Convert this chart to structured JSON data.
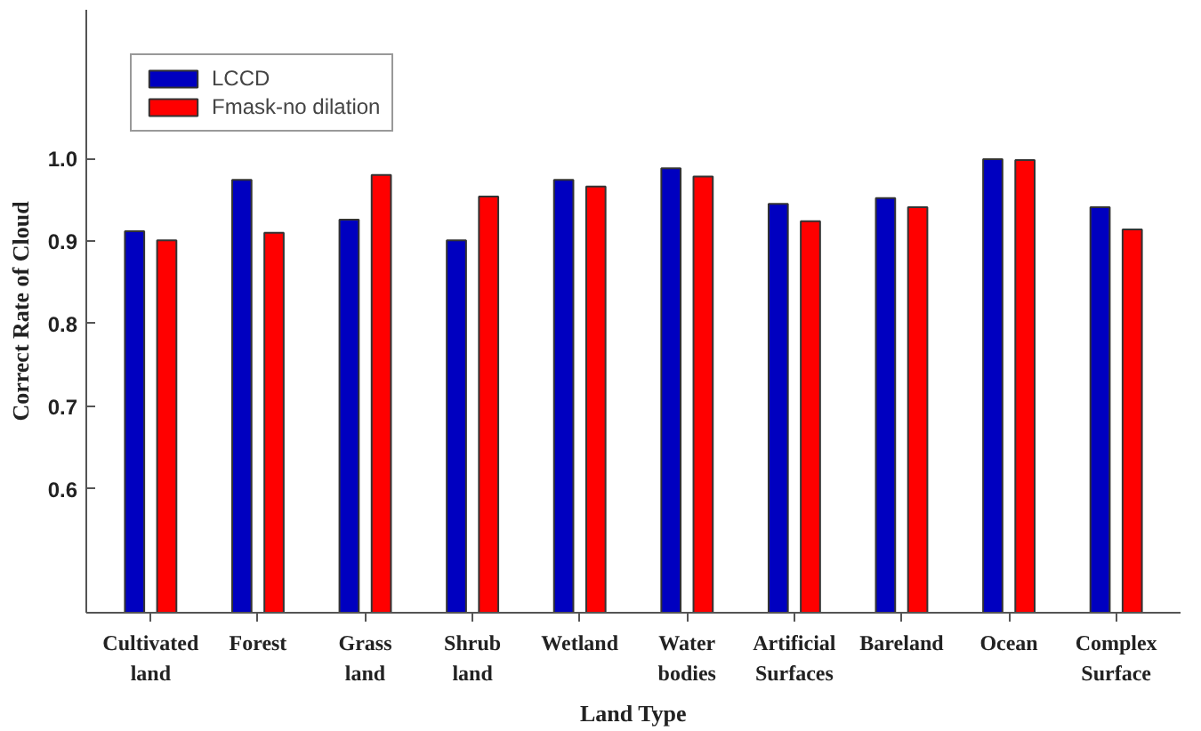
{
  "chart_data": {
    "type": "bar",
    "xlabel": "Land Type",
    "ylabel": "Correct Rate of Cloud",
    "categories": [
      "Cultivated land",
      "Forest",
      "Grass land",
      "Shrub land",
      "Wetland",
      "Water bodies",
      "Artificial Surfaces",
      "Bareland",
      "Ocean",
      "Complex Surface"
    ],
    "series": [
      {
        "name": "LCCD",
        "color": "#0000c0",
        "values": [
          0.912,
          0.974,
          0.926,
          0.901,
          0.974,
          0.988,
          0.945,
          0.952,
          0.999,
          0.941
        ]
      },
      {
        "name": "Fmask-no dilation",
        "color": "#ff0000",
        "values": [
          0.901,
          0.91,
          0.98,
          0.954,
          0.966,
          0.978,
          0.924,
          0.941,
          0.998,
          0.914
        ]
      }
    ],
    "ylim": [
      0.45,
      1.18
    ],
    "yticks": [
      0.6,
      0.7,
      0.8,
      0.9,
      {
        "value": 1.0,
        "label": "1.0"
      }
    ],
    "grid": false,
    "legend": "top left"
  }
}
